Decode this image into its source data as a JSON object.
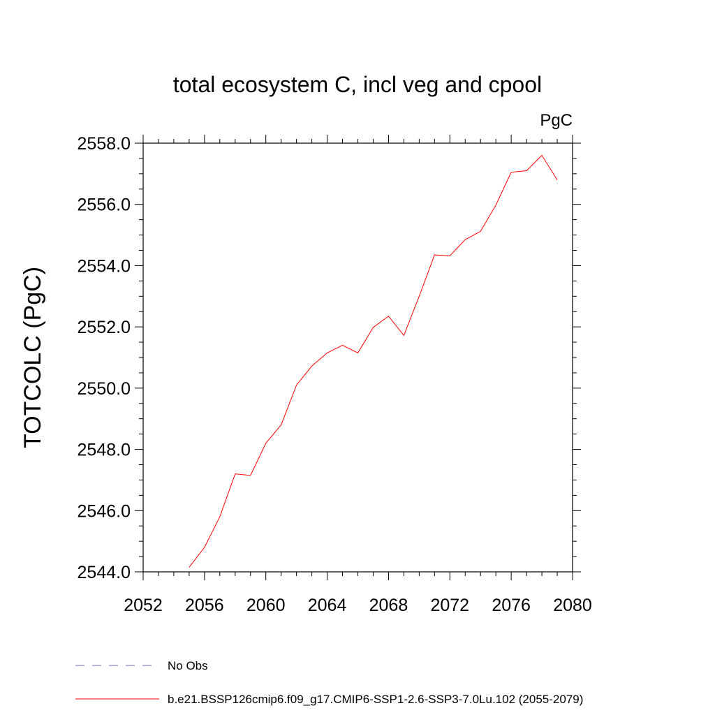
{
  "chart_data": {
    "type": "line",
    "title": "total ecosystem C, incl veg and cpool",
    "units_label": "PgC",
    "xlabel": "",
    "ylabel": "TOTCOLC  (PgC)",
    "xlim": [
      2052,
      2080
    ],
    "ylim": [
      2544.0,
      2558.0
    ],
    "x_ticks": [
      "2052",
      "2056",
      "2060",
      "2064",
      "2068",
      "2072",
      "2076",
      "2080"
    ],
    "y_ticks": [
      "2544.0",
      "2546.0",
      "2548.0",
      "2550.0",
      "2552.0",
      "2554.0",
      "2556.0",
      "2558.0"
    ],
    "grid": false,
    "legend_position": "bottom",
    "series": [
      {
        "name": "b.e21.BSSP126cmip6.f09_g17.CMIP6-SSP1-2.6-SSP3-7.0Lu.102 (2055-2079)",
        "color": "#ff0000",
        "style": "solid",
        "x": [
          2055,
          2056,
          2057,
          2058,
          2059,
          2060,
          2061,
          2062,
          2063,
          2064,
          2065,
          2066,
          2067,
          2068,
          2069,
          2070,
          2071,
          2072,
          2073,
          2074,
          2075,
          2076,
          2077,
          2078,
          2079
        ],
        "y": [
          2544.15,
          2544.8,
          2545.8,
          2547.2,
          2547.15,
          2548.2,
          2548.8,
          2550.1,
          2550.72,
          2551.15,
          2551.4,
          2551.15,
          2551.98,
          2552.35,
          2551.72,
          2553.0,
          2554.35,
          2554.32,
          2554.85,
          2555.12,
          2555.98,
          2557.05,
          2557.1,
          2557.6,
          2556.8
        ]
      },
      {
        "name": "No Obs",
        "color": "#7766aa",
        "style": "dashed",
        "x": [],
        "y": []
      }
    ]
  }
}
